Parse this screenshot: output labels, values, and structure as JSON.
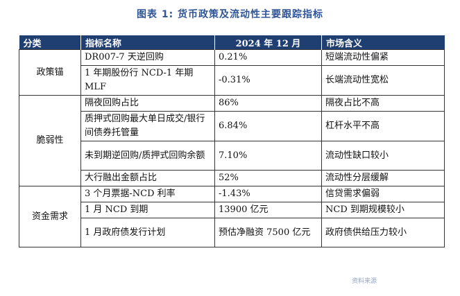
{
  "title": "图表 1:   货币政策及流动性主要跟踪指标",
  "headers": [
    "分类",
    "指标名称",
    "2024 年 12 月",
    "市场含义"
  ],
  "groups": [
    {
      "category": "政策锚",
      "rows": [
        {
          "indicator": "DR007-7 天逆回购",
          "value": "0.21%",
          "meaning": "短端流动性偏紧"
        },
        {
          "indicator": "1 年期股份行 NCD-1 年期 MLF",
          "value": "-0.31%",
          "meaning": "长端流动性宽松"
        }
      ]
    },
    {
      "category": "脆弱性",
      "rows": [
        {
          "indicator": "隔夜回购占比",
          "value": "86%",
          "meaning": "隔夜占比不高"
        },
        {
          "indicator": "质押式回购最大单日成交/银行间债券托管量",
          "value": "6.84%",
          "meaning": "杠杆水平不高"
        },
        {
          "indicator": "未到期逆回购/质押式回购余额",
          "value": "7.10%",
          "meaning": "流动性缺口较小"
        },
        {
          "indicator": "大行融出金额占比",
          "value": "52%",
          "meaning": "流动性分层缓解"
        }
      ]
    },
    {
      "category": "资金需求",
      "rows": [
        {
          "indicator": "3 个月票据-NCD 利率",
          "value": "-1.43%",
          "meaning": "信贷需求偏弱"
        },
        {
          "indicator": "1 月 NCD 到期",
          "value": "13900 亿元",
          "meaning": "NCD 到期规模较小"
        },
        {
          "indicator": "1 月政府债发行计划",
          "value": "预估净融资 7500 亿元",
          "meaning": "政府债供给压力较小"
        }
      ]
    }
  ],
  "footer": "资料来源"
}
